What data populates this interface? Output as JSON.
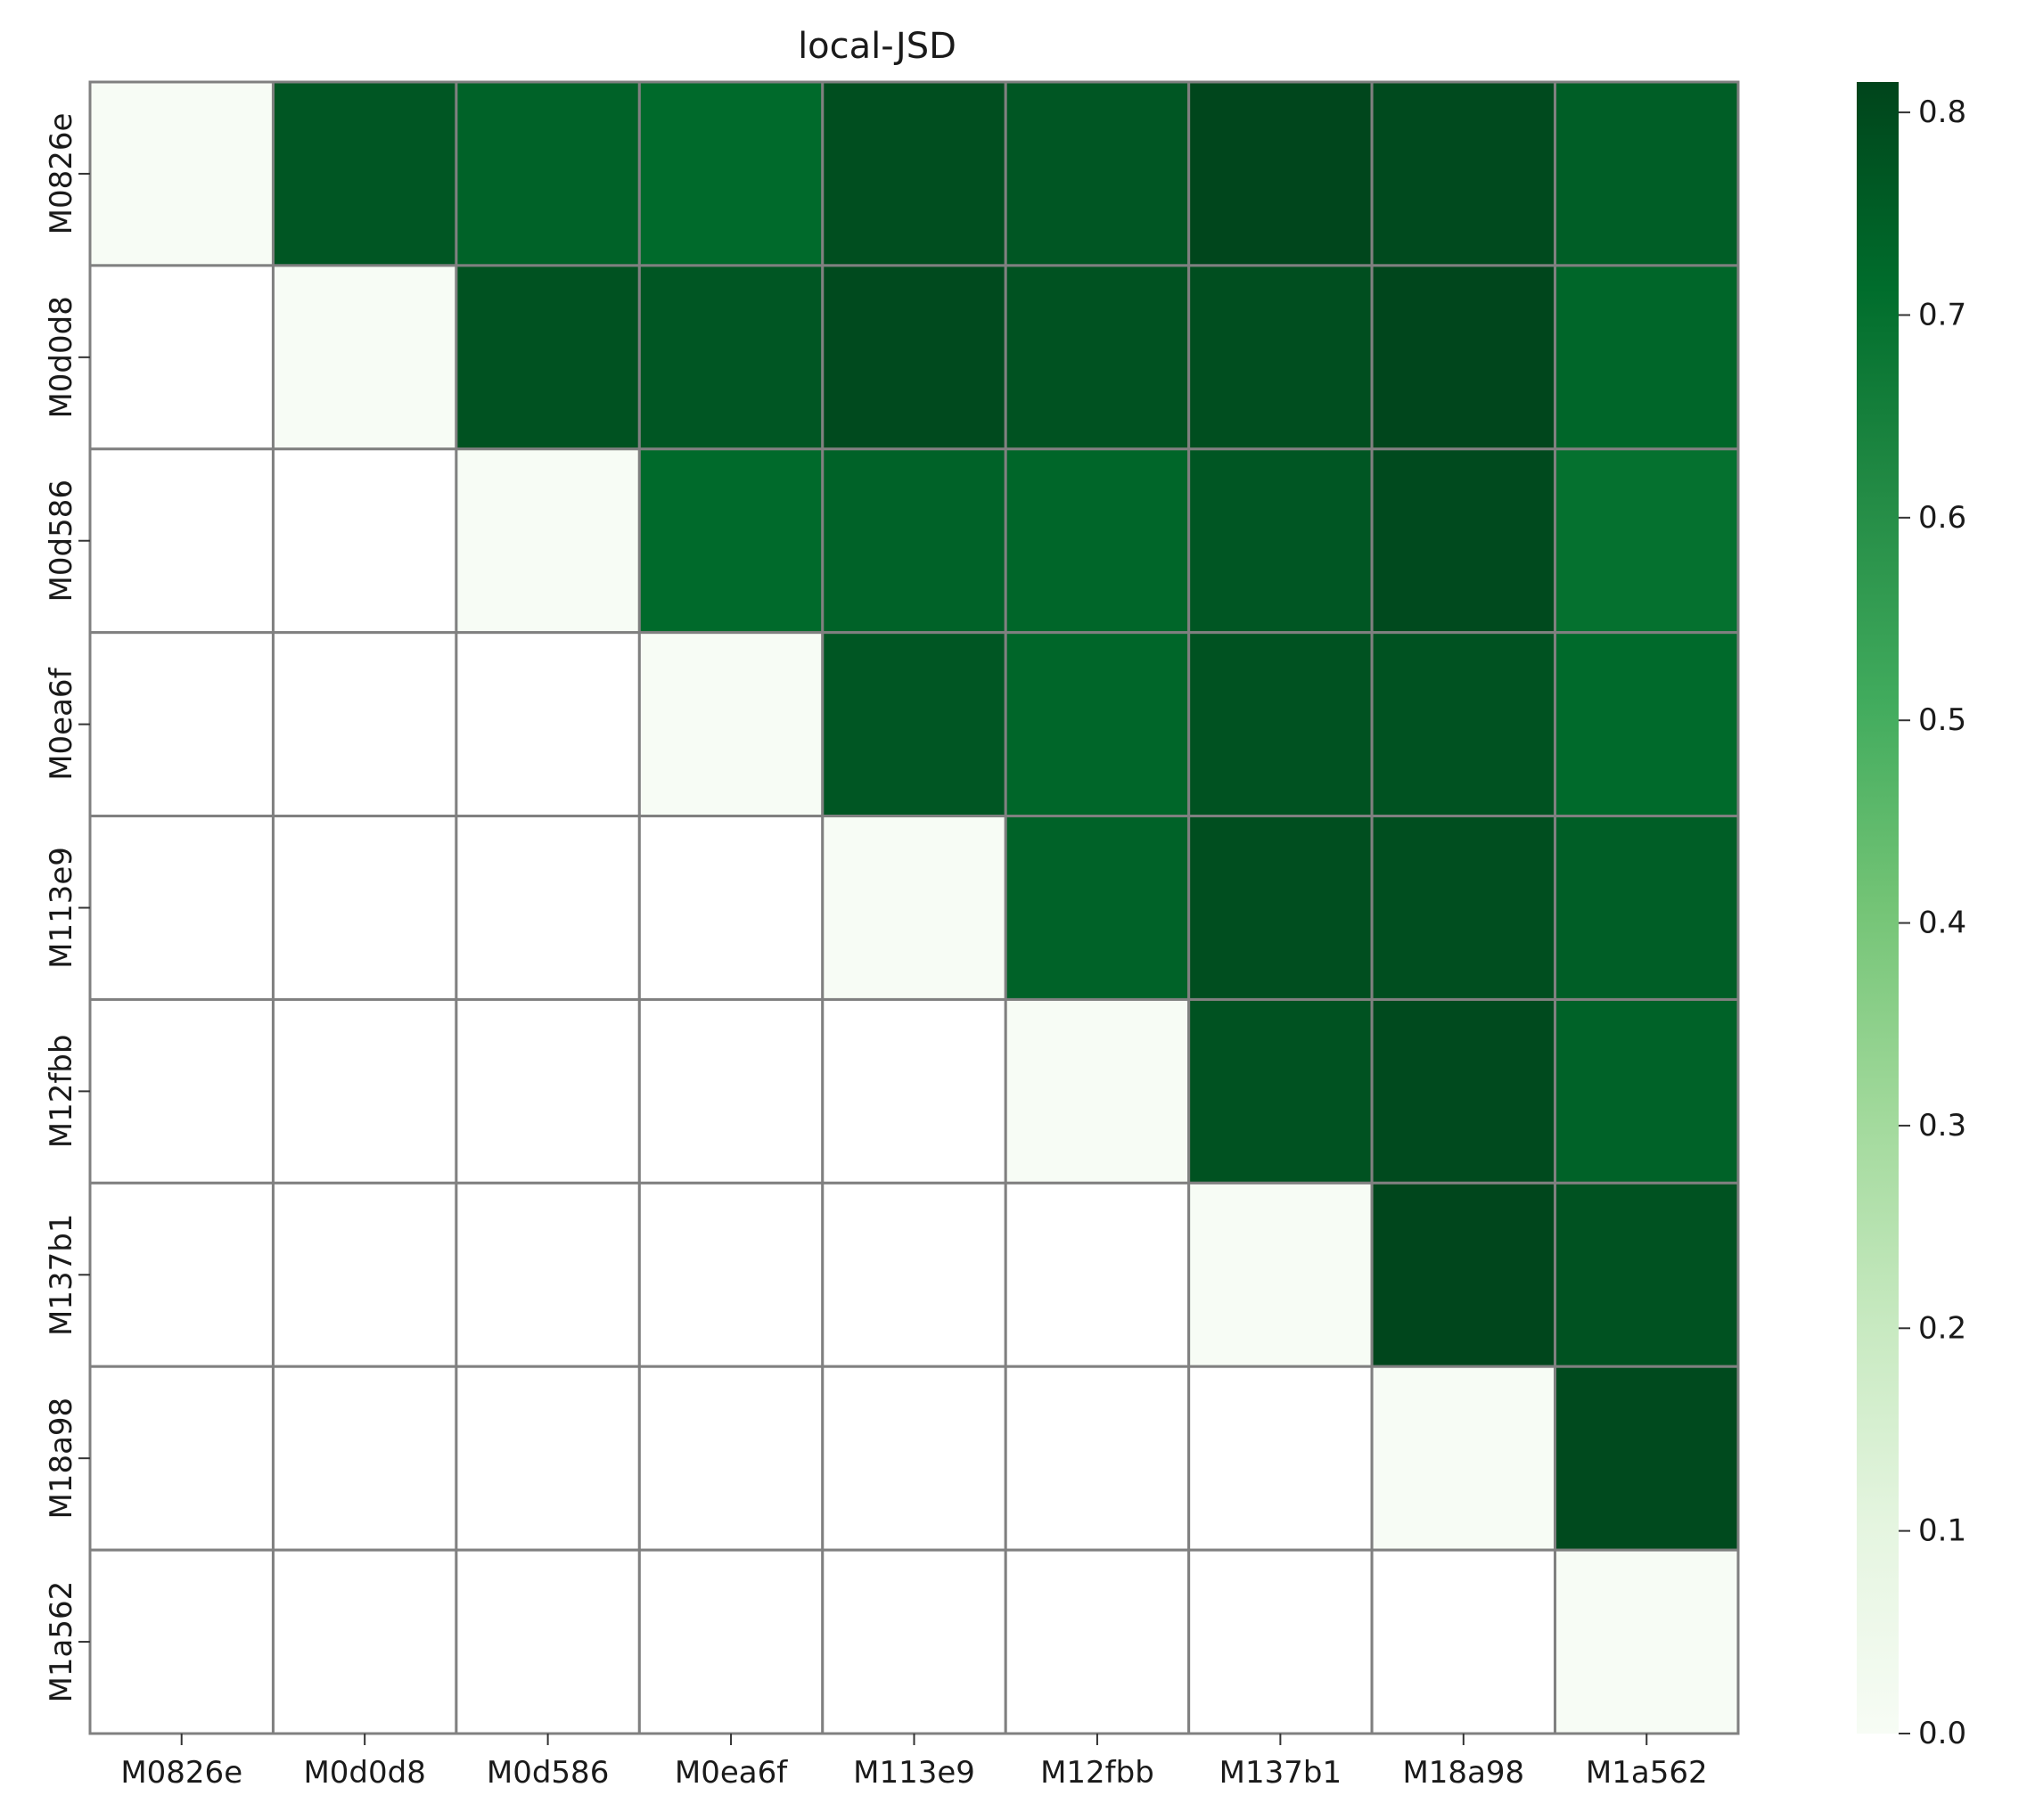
{
  "chart_data": {
    "type": "heatmap",
    "title": "local-JSD",
    "xlabel": "",
    "ylabel": "",
    "x_categories": [
      "M0826e",
      "M0d0d8",
      "M0d586",
      "M0ea6f",
      "M113e9",
      "M12fbb",
      "M137b1",
      "M18a98",
      "M1a562"
    ],
    "y_categories": [
      "M0826e",
      "M0d0d8",
      "M0d586",
      "M0ea6f",
      "M113e9",
      "M12fbb",
      "M137b1",
      "M18a98",
      "M1a562"
    ],
    "mask": "lower-triangle",
    "values": [
      [
        0.0,
        0.77,
        0.74,
        0.72,
        0.79,
        0.77,
        0.81,
        0.8,
        0.75
      ],
      [
        null,
        0.0,
        0.78,
        0.77,
        0.8,
        0.78,
        0.79,
        0.81,
        0.73
      ],
      [
        null,
        null,
        0.0,
        0.72,
        0.74,
        0.73,
        0.77,
        0.8,
        0.7
      ],
      [
        null,
        null,
        null,
        0.0,
        0.77,
        0.73,
        0.78,
        0.78,
        0.72
      ],
      [
        null,
        null,
        null,
        null,
        0.0,
        0.74,
        0.79,
        0.79,
        0.75
      ],
      [
        null,
        null,
        null,
        null,
        null,
        0.0,
        0.78,
        0.8,
        0.74
      ],
      [
        null,
        null,
        null,
        null,
        null,
        null,
        0.0,
        0.81,
        0.78
      ],
      [
        null,
        null,
        null,
        null,
        null,
        null,
        null,
        0.0,
        0.8
      ],
      [
        null,
        null,
        null,
        null,
        null,
        null,
        null,
        null,
        0.0
      ]
    ],
    "colormap": "Greens",
    "colormap_stops": [
      "#f7fcf5",
      "#e5f5e0",
      "#c7e9c0",
      "#a1d99b",
      "#74c476",
      "#41ab5d",
      "#238b45",
      "#006d2c",
      "#00441b"
    ],
    "vmin": 0.0,
    "vmax": 0.815,
    "grid": true,
    "grid_color": "#808080",
    "colorbar": {
      "position": "right",
      "ticks": [
        0.0,
        0.1,
        0.2,
        0.3,
        0.4,
        0.5,
        0.6,
        0.7,
        0.8
      ],
      "tick_labels": [
        "0.0",
        "0.1",
        "0.2",
        "0.3",
        "0.4",
        "0.5",
        "0.6",
        "0.7",
        "0.8"
      ]
    }
  }
}
